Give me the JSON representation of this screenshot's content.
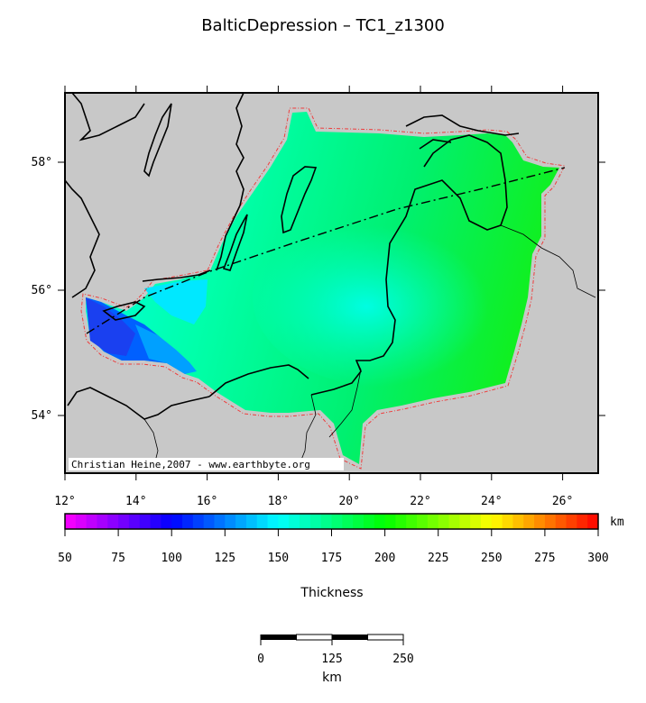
{
  "title": "BalticDepression – TC1_z1300",
  "map": {
    "lon_range": [
      12,
      27
    ],
    "lat_range": [
      53,
      59
    ],
    "lon_ticks": [
      "12°",
      "14°",
      "16°",
      "18°",
      "20°",
      "22°",
      "24°",
      "26°"
    ],
    "lat_ticks": [
      "54°",
      "56°",
      "58°"
    ],
    "credit": "Christian Heine,2007 - www.earthbyte.org",
    "background_color": "#c8c8c8",
    "coastline_color": "#000000",
    "boundary_color": "#ff0000"
  },
  "colorbar": {
    "unit": "km",
    "labels": [
      "50",
      "75",
      "100",
      "125",
      "150",
      "175",
      "200",
      "225",
      "250",
      "275",
      "300"
    ],
    "title": "Thickness",
    "range": [
      50,
      300
    ]
  },
  "scalebar": {
    "labels": [
      "0",
      "125",
      "250"
    ],
    "unit": "km"
  }
}
